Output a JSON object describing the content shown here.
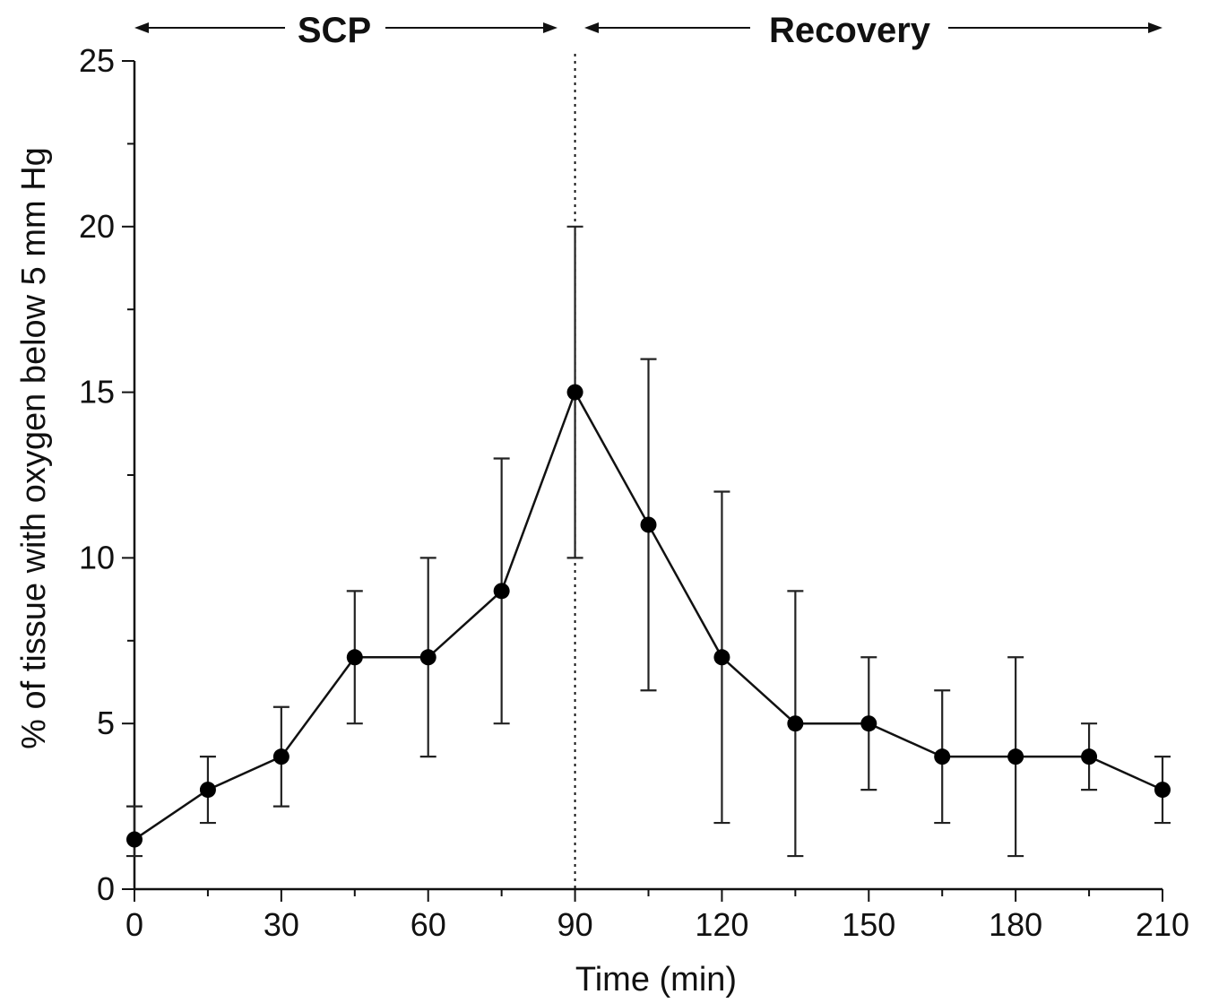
{
  "chart_data": {
    "type": "line",
    "title": "",
    "xlabel": "Time (min)",
    "ylabel": "% of tissue with oxygen below 5 mm Hg",
    "xlim": [
      0,
      210
    ],
    "ylim": [
      0,
      25
    ],
    "x_ticks": [
      0,
      30,
      60,
      90,
      120,
      150,
      180,
      210
    ],
    "x_tick_labels": [
      "0",
      "30",
      "60",
      "90",
      "120",
      "150",
      "180",
      "210"
    ],
    "y_ticks": [
      0,
      5,
      10,
      15,
      20,
      25
    ],
    "y_tick_labels": [
      "0",
      "5",
      "10",
      "15",
      "20",
      "25"
    ],
    "grid": false,
    "legend": "none",
    "series": [
      {
        "x": [
          0,
          15,
          30,
          45,
          60,
          75,
          90,
          105,
          120,
          135,
          150,
          165,
          180,
          195,
          210
        ],
        "values": [
          1.5,
          3,
          4,
          7,
          7,
          9,
          15,
          11,
          7,
          5,
          5,
          4,
          4,
          4,
          3
        ],
        "error_low": [
          1,
          2,
          2.5,
          5,
          4,
          5,
          10,
          6,
          2,
          1,
          3,
          2,
          1,
          3,
          2
        ],
        "error_high": [
          2.5,
          4,
          5.5,
          9,
          10,
          13,
          20,
          16,
          12,
          9,
          7,
          6,
          7,
          5,
          4
        ]
      }
    ],
    "annotations": {
      "divider_x": 90,
      "phases": [
        {
          "label": "SCP",
          "from": 0,
          "to": 90
        },
        {
          "label": "Recovery",
          "from": 90,
          "to": 210
        }
      ]
    },
    "colors": {
      "line": "#111111",
      "marker": "#000000",
      "axis": "#111111"
    }
  }
}
